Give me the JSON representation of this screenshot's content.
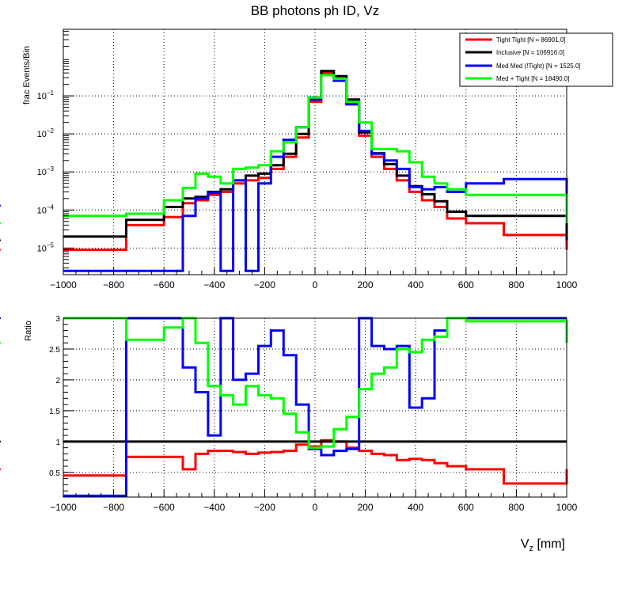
{
  "chart_data": [
    {
      "type": "line",
      "subtype": "step-histogram",
      "title": "BB photons ph ID, Vz",
      "xlabel": "",
      "ylabel": "frac Events/Bin",
      "yscale": "log",
      "xlim": [
        -1000,
        1000
      ],
      "ylim_exp": [
        -5.7,
        0.75
      ],
      "grid": true,
      "legend_position": "top-right",
      "x_ticks": [
        "-1000",
        "-800",
        "-600",
        "-400",
        "-200",
        "0",
        "200",
        "400",
        "600",
        "800",
        "1000"
      ],
      "y_tick_labels": [
        {
          "base": "10",
          "exp": "-5",
          "value": 1e-05
        },
        {
          "base": "10",
          "exp": "-4",
          "value": 0.0001
        },
        {
          "base": "10",
          "exp": "-3",
          "value": 0.001
        },
        {
          "base": "10",
          "exp": "-2",
          "value": 0.01
        },
        {
          "base": "10",
          "exp": "-1",
          "value": 0.1
        }
      ],
      "bin_edges": [
        -1000,
        -750,
        -600,
        -525,
        -475,
        -425,
        -375,
        -325,
        -275,
        -225,
        -175,
        -125,
        -75,
        -25,
        25,
        75,
        125,
        175,
        225,
        275,
        325,
        375,
        425,
        475,
        525,
        600,
        750,
        1000
      ],
      "series": [
        {
          "name": "Tight Tight [N = 86901.0]",
          "color": "#ff0000",
          "values": [
            9e-06,
            4e-05,
            6.5e-05,
            0.00015,
            0.00018,
            0.00025,
            0.0003,
            0.0005,
            0.0006,
            0.0007,
            0.0012,
            0.0025,
            0.008,
            0.07,
            0.4,
            0.28,
            0.06,
            0.009,
            0.0025,
            0.0012,
            0.0006,
            0.0003,
            0.00018,
            0.00012,
            6e-05,
            4.5e-05,
            2.2e-05,
            9e-06
          ]
        },
        {
          "name": "Inclusive [N = 106916.0]",
          "color": "#000000",
          "values": [
            2e-05,
            5.5e-05,
            0.00012,
            0.0002,
            0.00022,
            0.0003,
            0.00035,
            0.0006,
            0.0008,
            0.0009,
            0.0015,
            0.003,
            0.01,
            0.09,
            0.45,
            0.33,
            0.08,
            0.011,
            0.0031,
            0.0016,
            0.0008,
            0.00042,
            0.00026,
            0.00017,
            9e-05,
            7e-05,
            7e-05,
            1.6e-05
          ]
        },
        {
          "name": "Med Med (!Tight) [N = 1525.0]",
          "color": "#0000ff",
          "values": [
            2.5e-06,
            2.5e-06,
            2.5e-06,
            7e-05,
            0.0002,
            0.00028,
            2.5e-06,
            0.0006,
            2.5e-06,
            0.0005,
            0.0025,
            0.007,
            0.015,
            0.08,
            0.35,
            0.25,
            0.06,
            0.012,
            0.003,
            0.002,
            0.0012,
            0.0004,
            0.00035,
            0.0004,
            0.0003,
            0.0005,
            0.00065,
            0.00013
          ]
        },
        {
          "name": "Med + Tight [N = 18490.0]",
          "color": "#00ff00",
          "values": [
            7e-05,
            8e-05,
            0.00018,
            0.00038,
            0.0009,
            0.00075,
            0.0005,
            0.0012,
            0.0013,
            0.0015,
            0.0035,
            0.006,
            0.015,
            0.09,
            0.35,
            0.28,
            0.07,
            0.02,
            0.004,
            0.004,
            0.0035,
            0.0018,
            0.00075,
            0.0005,
            0.00035,
            0.00025,
            0.00025,
            4.5e-05
          ]
        }
      ]
    },
    {
      "type": "line",
      "subtype": "step-histogram",
      "title": "",
      "xlabel": "V_z [mm]",
      "xlabel_main": "V",
      "xlabel_sub": "z",
      "xlabel_unit": " [mm]",
      "ylabel": "Ratio",
      "xlim": [
        -1000,
        1000
      ],
      "ylim": [
        0.1,
        3
      ],
      "grid": true,
      "x_ticks": [
        "-1000",
        "-800",
        "-600",
        "-400",
        "-200",
        "0",
        "200",
        "400",
        "600",
        "800",
        "1000"
      ],
      "y_ticks": [
        {
          "label": "0.5",
          "value": 0.5
        },
        {
          "label": "1",
          "value": 1
        },
        {
          "label": "1.5",
          "value": 1.5
        },
        {
          "label": "2",
          "value": 2
        },
        {
          "label": "2.5",
          "value": 2.5
        },
        {
          "label": "3",
          "value": 3
        }
      ],
      "bin_edges": [
        -1000,
        -750,
        -600,
        -525,
        -475,
        -425,
        -375,
        -325,
        -275,
        -225,
        -175,
        -125,
        -75,
        -25,
        25,
        75,
        125,
        175,
        225,
        275,
        325,
        375,
        425,
        475,
        525,
        600,
        750,
        1000
      ],
      "series": [
        {
          "name": "Tight Tight",
          "color": "#ff0000",
          "values": [
            0.45,
            0.75,
            0.75,
            0.55,
            0.8,
            0.85,
            0.85,
            0.83,
            0.8,
            0.82,
            0.83,
            0.85,
            0.95,
            0.92,
            1.02,
            1.0,
            0.9,
            0.85,
            0.8,
            0.78,
            0.7,
            0.72,
            0.7,
            0.65,
            0.6,
            0.55,
            0.32,
            0.55
          ]
        },
        {
          "name": "Inclusive",
          "color": "#000000",
          "values": [
            1,
            1,
            1,
            1,
            1,
            1,
            1,
            1,
            1,
            1,
            1,
            1,
            1,
            1,
            1,
            1,
            1,
            1,
            1,
            1,
            1,
            1,
            1,
            1,
            1,
            1,
            1,
            1
          ]
        },
        {
          "name": "Med Med (!Tight)",
          "color": "#0000ff",
          "values": [
            0.12,
            3,
            3,
            2.2,
            1.8,
            1.1,
            3,
            2.0,
            2.1,
            2.55,
            2.8,
            2.4,
            1.6,
            0.88,
            0.78,
            0.85,
            0.88,
            3,
            2.55,
            2.5,
            2.55,
            1.55,
            1.7,
            2.8,
            3,
            3,
            3,
            3
          ]
        },
        {
          "name": "Med + Tight",
          "color": "#00ff00",
          "values": [
            3,
            2.65,
            2.85,
            3,
            2.6,
            1.9,
            1.75,
            1.6,
            1.9,
            1.75,
            1.7,
            1.45,
            1.15,
            0.9,
            0.92,
            1.2,
            1.4,
            1.85,
            2.1,
            2.2,
            2.5,
            2.45,
            2.65,
            2.7,
            3,
            2.95,
            2.95,
            2.6
          ]
        }
      ]
    }
  ]
}
